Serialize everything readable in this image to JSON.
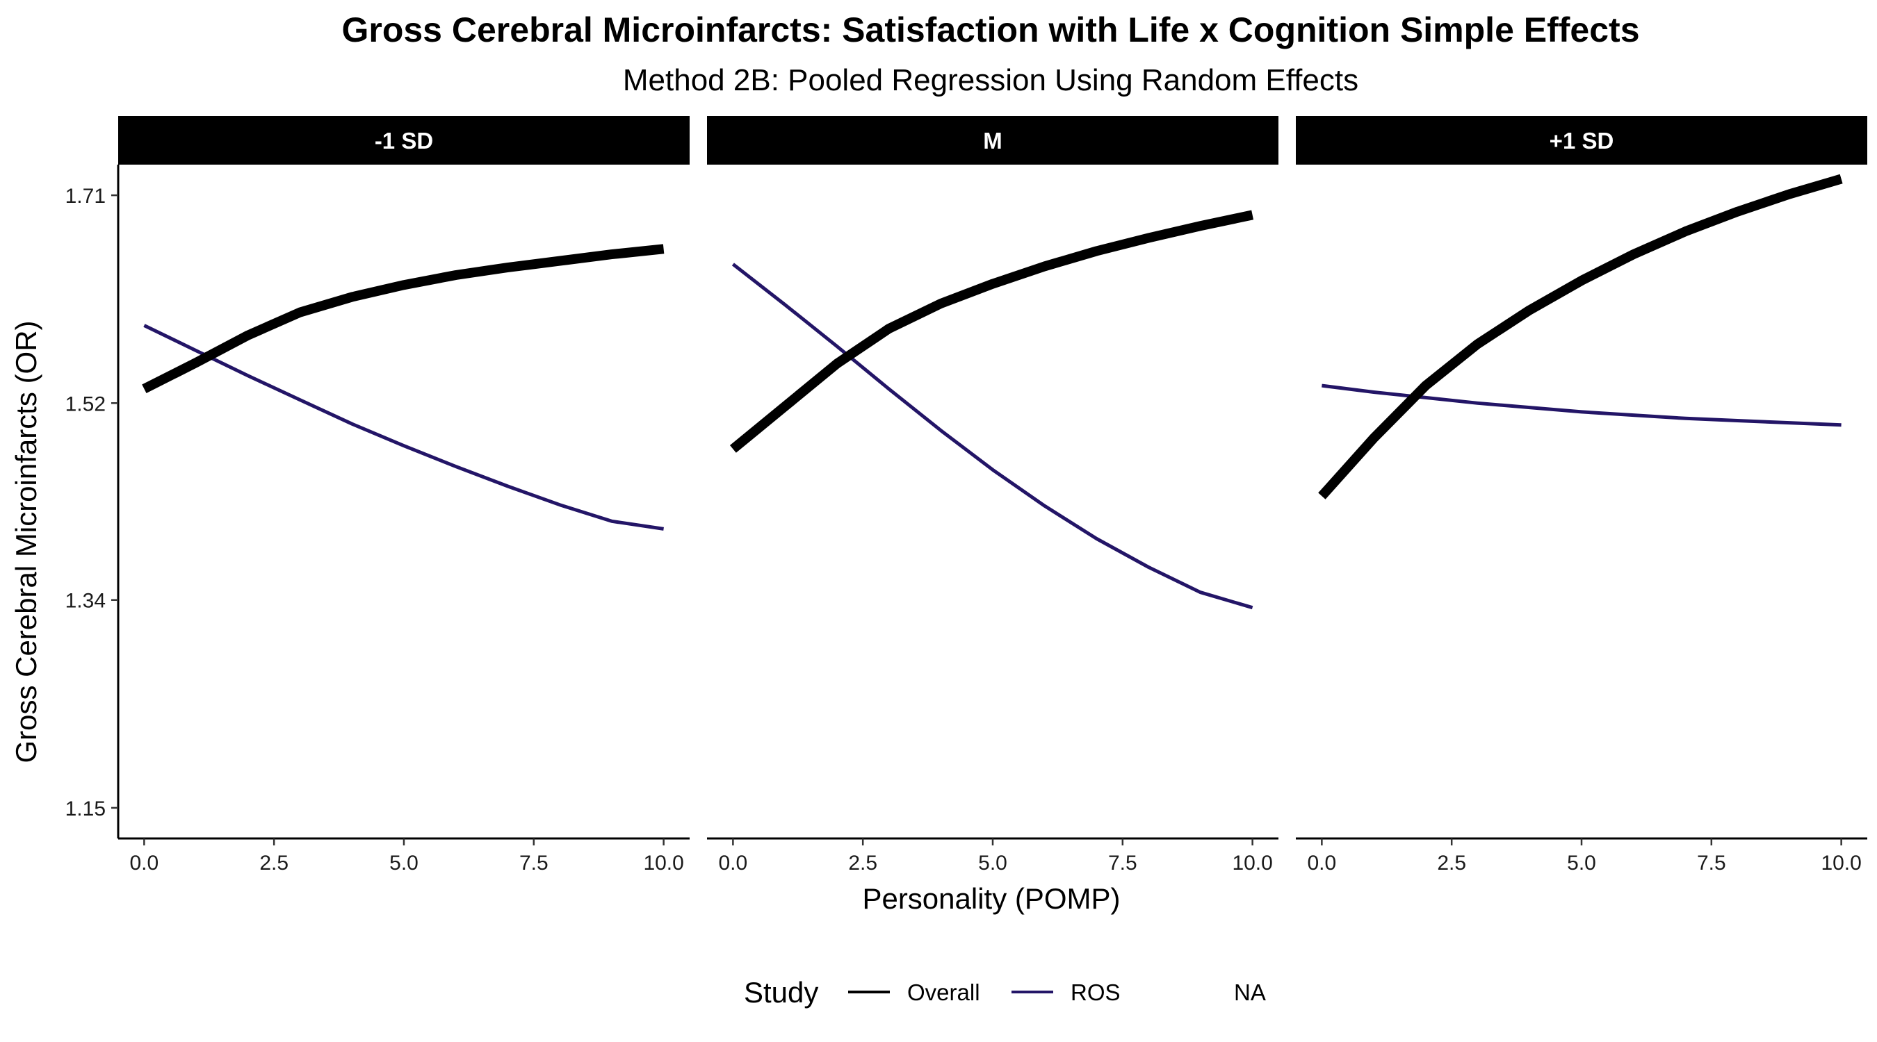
{
  "chart_data": {
    "type": "line",
    "title": "Gross Cerebral Microinfarcts: Satisfaction with Life x Cognition Simple Effects",
    "subtitle": "Method 2B: Pooled Regression Using Random Effects",
    "xlabel": "Personality (POMP)",
    "ylabel": "Gross Cerebral Microinfarcts (OR)",
    "xlim": [
      -0.5,
      10.5
    ],
    "ylim": [
      1.122,
      1.738
    ],
    "x_ticks": [
      0,
      2.5,
      5,
      7.5,
      10
    ],
    "x_tick_labels": [
      "0.0",
      "2.5",
      "5.0",
      "7.5",
      "10.0"
    ],
    "y_ticks": [
      1.15,
      1.34,
      1.52,
      1.71
    ],
    "y_tick_labels": [
      "1.15",
      "1.34",
      "1.52",
      "1.71"
    ],
    "grid": false,
    "legend": {
      "title": "Study",
      "position": "bottom",
      "entries": [
        {
          "label": "Overall",
          "color": "#000000"
        },
        {
          "label": "ROS",
          "color": "#231567"
        },
        {
          "label": "NA",
          "color": ""
        }
      ]
    },
    "x": [
      0,
      1,
      2,
      3,
      4,
      5,
      6,
      7,
      8,
      9,
      10
    ],
    "panels": [
      {
        "label": "-1 SD",
        "series": [
          {
            "name": "Overall",
            "color": "#000000",
            "width": 14,
            "values": [
              1.533,
              1.557,
              1.582,
              1.603,
              1.617,
              1.628,
              1.637,
              1.644,
              1.65,
              1.656,
              1.661
            ]
          },
          {
            "name": "ROS",
            "color": "#231567",
            "width": 5,
            "values": [
              1.591,
              1.568,
              1.545,
              1.523,
              1.501,
              1.481,
              1.462,
              1.444,
              1.427,
              1.412,
              1.405
            ]
          }
        ]
      },
      {
        "label": "M",
        "series": [
          {
            "name": "Overall",
            "color": "#000000",
            "width": 14,
            "values": [
              1.478,
              1.517,
              1.556,
              1.588,
              1.611,
              1.629,
              1.645,
              1.659,
              1.671,
              1.682,
              1.692
            ]
          },
          {
            "name": "ROS",
            "color": "#231567",
            "width": 5,
            "values": [
              1.647,
              1.61,
              1.572,
              1.533,
              1.495,
              1.459,
              1.426,
              1.396,
              1.37,
              1.347,
              1.333
            ]
          }
        ]
      },
      {
        "label": "+1 SD",
        "series": [
          {
            "name": "Overall",
            "color": "#000000",
            "width": 14,
            "values": [
              1.435,
              1.488,
              1.536,
              1.574,
              1.605,
              1.632,
              1.656,
              1.677,
              1.695,
              1.711,
              1.725
            ]
          },
          {
            "name": "ROS",
            "color": "#231567",
            "width": 5,
            "values": [
              1.536,
              1.53,
              1.525,
              1.52,
              1.516,
              1.512,
              1.509,
              1.506,
              1.504,
              1.502,
              1.5
            ]
          }
        ]
      }
    ]
  }
}
